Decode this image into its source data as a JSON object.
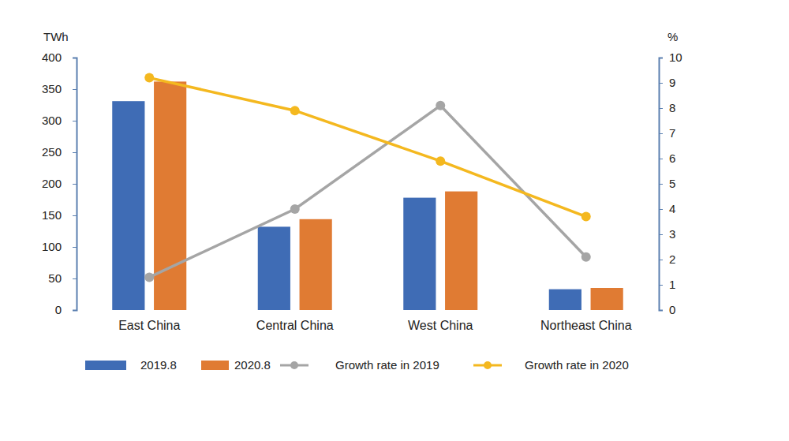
{
  "chart_data": {
    "type": "bar",
    "categories": [
      "East China",
      "Central China",
      "West China",
      "Northeast China"
    ],
    "y_label": "TWh",
    "y2_label": "%",
    "ylim": [
      0,
      400
    ],
    "yticks": [
      0,
      50,
      100,
      150,
      200,
      250,
      300,
      350,
      400
    ],
    "y2lim": [
      0,
      10
    ],
    "y2ticks": [
      0,
      1,
      2,
      3,
      4,
      5,
      6,
      7,
      8,
      9,
      10
    ],
    "grid": false,
    "legend": "bottom",
    "series": [
      {
        "name": "2019.8",
        "type": "bar",
        "color": "#3f6cb5",
        "values": [
          331,
          132,
          178,
          33
        ]
      },
      {
        "name": "2020.8",
        "type": "bar",
        "color": "#e07b33",
        "values": [
          362,
          144,
          188,
          35
        ]
      },
      {
        "name": "Growth rate in 2019",
        "type": "line",
        "axis": "y2",
        "color": "#a5a5a5",
        "marker": "circle",
        "values": [
          1.3,
          4.0,
          8.1,
          2.1
        ]
      },
      {
        "name": "Growth rate in 2020",
        "type": "line",
        "axis": "y2",
        "color": "#f4b81f",
        "marker": "circle",
        "values": [
          9.2,
          7.9,
          5.9,
          3.7
        ]
      }
    ]
  }
}
